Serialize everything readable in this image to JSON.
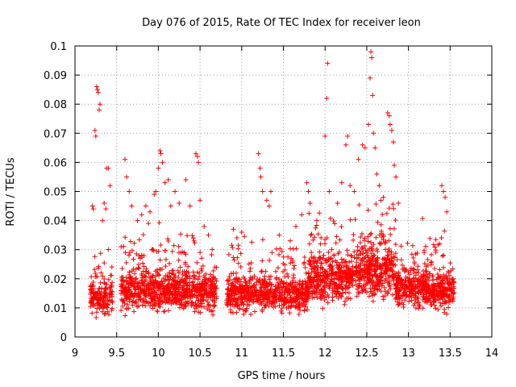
{
  "chart_data": {
    "type": "scatter",
    "title": "Day 076 of 2015, Rate Of TEC Index for receiver leon",
    "xlabel": "GPS time / hours",
    "ylabel": "ROTI / TECUs",
    "xlim": [
      9,
      14
    ],
    "ylim": [
      0,
      0.1
    ],
    "xticks": [
      "9",
      "9.5",
      "10",
      "10.5",
      "11",
      "11.5",
      "12",
      "12.5",
      "13",
      "13.5",
      "14"
    ],
    "yticks": [
      "0",
      "0.01",
      "0.02",
      "0.03",
      "0.04",
      "0.05",
      "0.06",
      "0.07",
      "0.08",
      "0.09",
      "0.1"
    ],
    "grid": true,
    "marker": "plus",
    "series": [
      {
        "name": "ROTI",
        "color": "#ff0000",
        "clusters": [
          {
            "x_range": [
              9.18,
              9.45
            ],
            "y_base": 0.011,
            "y_spread": 0.012,
            "count": 170
          },
          {
            "x_range": [
              9.55,
              10.15
            ],
            "y_base": 0.012,
            "y_spread": 0.014,
            "count": 420
          },
          {
            "x_range": [
              10.15,
              10.7
            ],
            "y_base": 0.012,
            "y_spread": 0.014,
            "count": 400
          },
          {
            "x_range": [
              10.82,
              11.3
            ],
            "y_base": 0.012,
            "y_spread": 0.013,
            "count": 330
          },
          {
            "x_range": [
              11.3,
              11.8
            ],
            "y_base": 0.012,
            "y_spread": 0.012,
            "count": 320
          },
          {
            "x_range": [
              11.8,
              12.3
            ],
            "y_base": 0.015,
            "y_spread": 0.016,
            "count": 380
          },
          {
            "x_range": [
              12.3,
              12.85
            ],
            "y_base": 0.016,
            "y_spread": 0.018,
            "count": 420
          },
          {
            "x_range": [
              12.85,
              13.25
            ],
            "y_base": 0.013,
            "y_spread": 0.014,
            "count": 300
          },
          {
            "x_range": [
              13.25,
              13.55
            ],
            "y_base": 0.013,
            "y_spread": 0.013,
            "count": 220
          }
        ],
        "high_points": [
          [
            9.21,
            0.045
          ],
          [
            9.22,
            0.044
          ],
          [
            9.24,
            0.071
          ],
          [
            9.25,
            0.069
          ],
          [
            9.26,
            0.086
          ],
          [
            9.27,
            0.085
          ],
          [
            9.28,
            0.084
          ],
          [
            9.29,
            0.078
          ],
          [
            9.3,
            0.08
          ],
          [
            9.33,
            0.04
          ],
          [
            9.35,
            0.046
          ],
          [
            9.37,
            0.044
          ],
          [
            9.38,
            0.058
          ],
          [
            9.4,
            0.058
          ],
          [
            9.42,
            0.052
          ],
          [
            9.6,
            0.061
          ],
          [
            9.62,
            0.055
          ],
          [
            9.65,
            0.05
          ],
          [
            9.68,
            0.045
          ],
          [
            9.75,
            0.04
          ],
          [
            9.8,
            0.042
          ],
          [
            9.85,
            0.045
          ],
          [
            9.9,
            0.043
          ],
          [
            9.95,
            0.049
          ],
          [
            9.97,
            0.05
          ],
          [
            10.0,
            0.058
          ],
          [
            10.02,
            0.064
          ],
          [
            10.03,
            0.063
          ],
          [
            10.05,
            0.06
          ],
          [
            10.08,
            0.053
          ],
          [
            10.12,
            0.054
          ],
          [
            10.15,
            0.045
          ],
          [
            10.2,
            0.05
          ],
          [
            10.25,
            0.046
          ],
          [
            10.33,
            0.054
          ],
          [
            10.38,
            0.045
          ],
          [
            10.45,
            0.063
          ],
          [
            10.47,
            0.062
          ],
          [
            10.48,
            0.06
          ],
          [
            10.5,
            0.047
          ],
          [
            10.55,
            0.038
          ],
          [
            10.6,
            0.035
          ],
          [
            10.9,
            0.037
          ],
          [
            11.0,
            0.036
          ],
          [
            11.2,
            0.063
          ],
          [
            11.22,
            0.058
          ],
          [
            11.23,
            0.055
          ],
          [
            11.25,
            0.05
          ],
          [
            11.3,
            0.047
          ],
          [
            11.33,
            0.045
          ],
          [
            11.35,
            0.05
          ],
          [
            11.45,
            0.035
          ],
          [
            11.65,
            0.038
          ],
          [
            11.72,
            0.042
          ],
          [
            11.78,
            0.053
          ],
          [
            11.8,
            0.05
          ],
          [
            11.82,
            0.046
          ],
          [
            11.9,
            0.04
          ],
          [
            12.0,
            0.069
          ],
          [
            12.02,
            0.082
          ],
          [
            12.03,
            0.094
          ],
          [
            12.05,
            0.05
          ],
          [
            12.15,
            0.046
          ],
          [
            12.2,
            0.053
          ],
          [
            12.25,
            0.066
          ],
          [
            12.27,
            0.069
          ],
          [
            12.3,
            0.052
          ],
          [
            12.35,
            0.05
          ],
          [
            12.4,
            0.061
          ],
          [
            12.45,
            0.066
          ],
          [
            12.48,
            0.065
          ],
          [
            12.52,
            0.073
          ],
          [
            12.54,
            0.089
          ],
          [
            12.55,
            0.098
          ],
          [
            12.56,
            0.096
          ],
          [
            12.57,
            0.083
          ],
          [
            12.58,
            0.07
          ],
          [
            12.6,
            0.065
          ],
          [
            12.62,
            0.056
          ],
          [
            12.65,
            0.052
          ],
          [
            12.7,
            0.048
          ],
          [
            12.75,
            0.077
          ],
          [
            12.77,
            0.076
          ],
          [
            12.78,
            0.073
          ],
          [
            12.8,
            0.071
          ],
          [
            12.82,
            0.067
          ],
          [
            12.83,
            0.059
          ],
          [
            12.85,
            0.055
          ],
          [
            12.88,
            0.046
          ],
          [
            13.4,
            0.052
          ],
          [
            13.42,
            0.05
          ],
          [
            13.44,
            0.048
          ],
          [
            13.46,
            0.043
          ]
        ]
      }
    ]
  }
}
